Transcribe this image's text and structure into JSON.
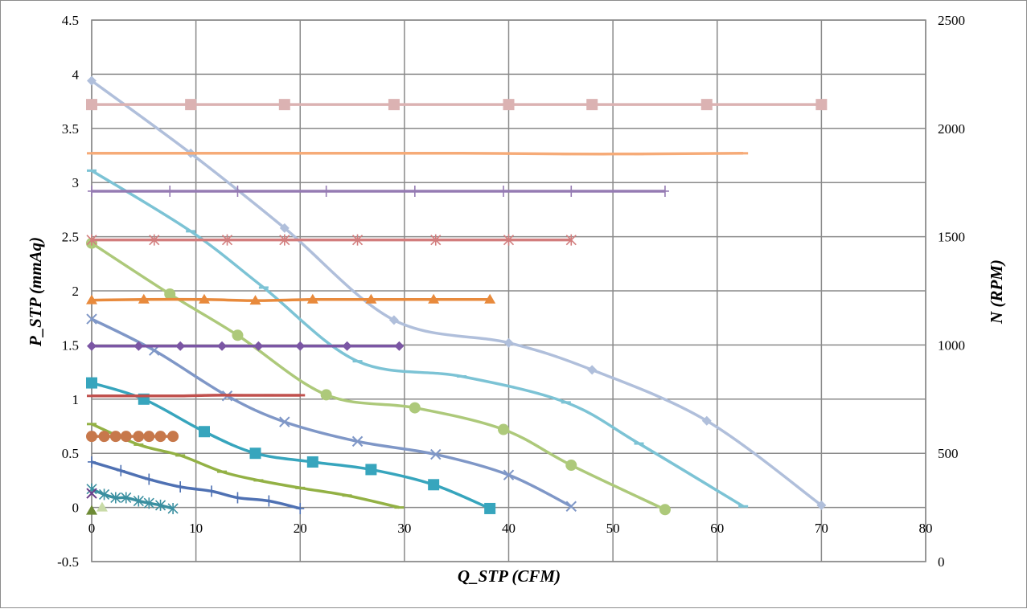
{
  "chart_data": {
    "type": "line",
    "title": "",
    "xlabel": "Q_STP (CFM)",
    "ylabel": "P_STP (mmAq)",
    "y2label": "N (RPM)",
    "xlim": [
      0,
      80
    ],
    "ylim": [
      -0.5,
      4.5
    ],
    "y2lim": [
      0,
      2500
    ],
    "xticks": [
      "0",
      "10",
      "20",
      "30",
      "40",
      "50",
      "60",
      "70",
      "80"
    ],
    "yticks": [
      "-0.5",
      "0",
      "0.5",
      "1",
      "1.5",
      "2",
      "2.5",
      "3",
      "3.5",
      "4",
      "4.5"
    ],
    "y2ticks": [
      "0",
      "500",
      "1000",
      "1500",
      "2000",
      "2500"
    ],
    "grid": true,
    "legend": "none",
    "series": [
      {
        "axis": "left",
        "marker": "diamond",
        "color": "#b0bfdb",
        "x": [
          0,
          9.5,
          18.5,
          29,
          40,
          48,
          59,
          70
        ],
        "y": [
          3.94,
          3.27,
          2.58,
          1.73,
          1.52,
          1.27,
          0.8,
          0.02
        ]
      },
      {
        "axis": "left",
        "marker": "dash",
        "color": "#7cc3d5",
        "x": [
          0,
          9.5,
          16.5,
          25.5,
          35.5,
          45.5,
          52.5,
          62.5
        ],
        "y": [
          3.11,
          2.55,
          2.03,
          1.35,
          1.21,
          0.97,
          0.59,
          0.01
        ]
      },
      {
        "axis": "left",
        "marker": "circle",
        "color": "#adc97a",
        "x": [
          0,
          7.5,
          14,
          22.5,
          31,
          39.5,
          46,
          55
        ],
        "y": [
          2.44,
          1.97,
          1.59,
          1.04,
          0.92,
          0.72,
          0.39,
          -0.02
        ]
      },
      {
        "axis": "left",
        "marker": "x",
        "color": "#7f97c7",
        "x": [
          0,
          6,
          13,
          18.5,
          25.5,
          33,
          40,
          46
        ],
        "y": [
          1.74,
          1.45,
          1.03,
          0.79,
          0.61,
          0.49,
          0.3,
          0.01
        ]
      },
      {
        "axis": "left",
        "marker": "square",
        "color": "#37a5bd",
        "x": [
          0,
          5,
          10.8,
          15.7,
          21.2,
          26.8,
          32.8,
          38.2
        ],
        "y": [
          1.15,
          1.0,
          0.7,
          0.5,
          0.42,
          0.35,
          0.21,
          -0.01
        ]
      },
      {
        "axis": "left",
        "marker": "dash",
        "color": "#93b145",
        "x": [
          0,
          4.5,
          8.5,
          12.5,
          16,
          20,
          24.5,
          29.5
        ],
        "y": [
          0.77,
          0.58,
          0.48,
          0.33,
          0.25,
          0.18,
          0.11,
          0.0
        ]
      },
      {
        "axis": "left",
        "marker": "plus",
        "color": "#4f71b3",
        "x": [
          0,
          2.8,
          5.5,
          8.5,
          11.5,
          14,
          17,
          20
        ],
        "y": [
          0.42,
          0.34,
          0.26,
          0.19,
          0.15,
          0.09,
          0.06,
          -0.01
        ]
      },
      {
        "axis": "left",
        "marker": "asterisk",
        "color": "#3a8fa0",
        "x": [
          0,
          1.2,
          2.3,
          3.3,
          4.5,
          5.5,
          6.6,
          7.8
        ],
        "y": [
          0.17,
          0.12,
          0.09,
          0.09,
          0.06,
          0.04,
          0.02,
          -0.01
        ]
      },
      {
        "axis": "left",
        "marker": "x",
        "color": "#6a3d8a",
        "x": [
          0
        ],
        "y": [
          0.13
        ]
      },
      {
        "axis": "left",
        "marker": "triangle",
        "color": "#6d8a35",
        "x": [
          0
        ],
        "y": [
          -0.03
        ]
      },
      {
        "axis": "left",
        "marker": "triangle",
        "color": "#c9dba8",
        "x": [
          1
        ],
        "y": [
          0.0
        ]
      },
      {
        "axis": "right",
        "marker": "square",
        "color": "#dbb2b2",
        "x": [
          0,
          9.5,
          18.5,
          29,
          40,
          48,
          59,
          70
        ],
        "y": [
          2110,
          2110,
          2110,
          2110,
          2110,
          2110,
          2110,
          2110
        ]
      },
      {
        "axis": "right",
        "marker": "dash",
        "color": "#f6ab78",
        "x": [
          0,
          9.5,
          16.5,
          25.5,
          35.5,
          45.5,
          52.5,
          62.5
        ],
        "y": [
          1885,
          1885,
          1885,
          1885,
          1885,
          1882,
          1882,
          1885
        ]
      },
      {
        "axis": "right",
        "marker": "plus",
        "color": "#957bb3",
        "x": [
          0,
          7.5,
          14,
          22.5,
          31,
          39.5,
          46,
          55
        ],
        "y": [
          1710,
          1710,
          1710,
          1710,
          1710,
          1710,
          1710,
          1710
        ]
      },
      {
        "axis": "right",
        "marker": "asterisk",
        "color": "#d27d7d",
        "x": [
          0,
          6,
          13,
          18.5,
          25.5,
          33,
          40,
          46
        ],
        "y": [
          1485,
          1485,
          1485,
          1485,
          1485,
          1485,
          1485,
          1485
        ]
      },
      {
        "axis": "right",
        "marker": "triangle",
        "color": "#e88a3c",
        "x": [
          0,
          5,
          10.8,
          15.7,
          21.2,
          26.8,
          32.8,
          38.2
        ],
        "y": [
          1207,
          1210,
          1210,
          1205,
          1210,
          1210,
          1210,
          1210
        ]
      },
      {
        "axis": "right",
        "marker": "diamond",
        "color": "#7b56a4",
        "x": [
          0,
          4.5,
          8.5,
          12.5,
          16,
          20,
          24.5,
          29.5
        ],
        "y": [
          995,
          995,
          995,
          995,
          995,
          995,
          995,
          995
        ]
      },
      {
        "axis": "right",
        "marker": "dash",
        "color": "#c0504d",
        "x": [
          0,
          2.8,
          5.5,
          8.5,
          11.5,
          14,
          17,
          20
        ],
        "y": [
          765,
          765,
          765,
          765,
          768,
          768,
          768,
          768
        ]
      },
      {
        "axis": "right",
        "marker": "circle",
        "color": "#c7784b",
        "x": [
          0,
          1.2,
          2.3,
          3.3,
          4.5,
          5.5,
          6.6,
          7.8
        ],
        "y": [
          578,
          578,
          578,
          578,
          578,
          578,
          578,
          578
        ]
      }
    ]
  }
}
